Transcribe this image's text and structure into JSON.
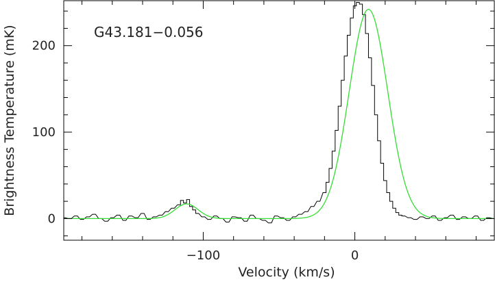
{
  "chart_data": {
    "type": "line",
    "title": "G43.181−0.056",
    "xlabel": "Velocity (km/s)",
    "ylabel": "Brightness Temperature (mK)",
    "xlim": [
      -192,
      92
    ],
    "ylim": [
      -25,
      252
    ],
    "x_major_ticks": [
      -100,
      0
    ],
    "x_tick_labels": [
      "−100",
      "0"
    ],
    "y_major_ticks": [
      0,
      100,
      200
    ],
    "y_tick_labels": [
      "0",
      "100",
      "200"
    ],
    "grid": false,
    "legend": "none",
    "series": [
      {
        "style": "step",
        "color": "#000000",
        "x": [
          -192,
          -188,
          -184,
          -180,
          -176,
          -172,
          -168,
          -164,
          -160,
          -156,
          -152,
          -148,
          -144,
          -140,
          -136,
          -132,
          -128,
          -124,
          -120,
          -116,
          -114,
          -112,
          -110,
          -108,
          -106,
          -104,
          -100,
          -96,
          -92,
          -88,
          -84,
          -80,
          -76,
          -72,
          -68,
          -64,
          -60,
          -56,
          -52,
          -48,
          -44,
          -40,
          -36,
          -32,
          -28,
          -24,
          -20,
          -18,
          -16,
          -14,
          -12,
          -10,
          -8,
          -6,
          -4,
          -2,
          0,
          2,
          4,
          6,
          8,
          10,
          12,
          14,
          16,
          18,
          20,
          22,
          24,
          26,
          28,
          30,
          32,
          36,
          40,
          44,
          48,
          52,
          56,
          60,
          64,
          68,
          72,
          76,
          80,
          84,
          88,
          92
        ],
        "y": [
          1,
          0,
          3,
          -1,
          2,
          5,
          0,
          -3,
          1,
          4,
          -2,
          3,
          1,
          6,
          -1,
          2,
          4,
          8,
          12,
          16,
          21,
          18,
          22,
          14,
          10,
          6,
          2,
          -1,
          3,
          0,
          -4,
          2,
          1,
          -3,
          4,
          0,
          -2,
          -5,
          3,
          1,
          -2,
          2,
          5,
          8,
          14,
          20,
          30,
          42,
          58,
          78,
          102,
          130,
          160,
          188,
          212,
          232,
          246,
          250,
          248,
          236,
          214,
          186,
          154,
          120,
          90,
          64,
          44,
          30,
          20,
          12,
          7,
          4,
          3,
          1,
          -1,
          2,
          0,
          3,
          -2,
          1,
          4,
          -1,
          2,
          0,
          3,
          -2,
          1,
          0
        ],
        "bin_width": 2
      },
      {
        "style": "smooth",
        "color": "#33dd33",
        "components": [
          {
            "amplitude": 242,
            "center": 9,
            "fwhm": 30
          },
          {
            "amplitude": 17,
            "center": -111,
            "fwhm": 18
          }
        ]
      }
    ]
  }
}
